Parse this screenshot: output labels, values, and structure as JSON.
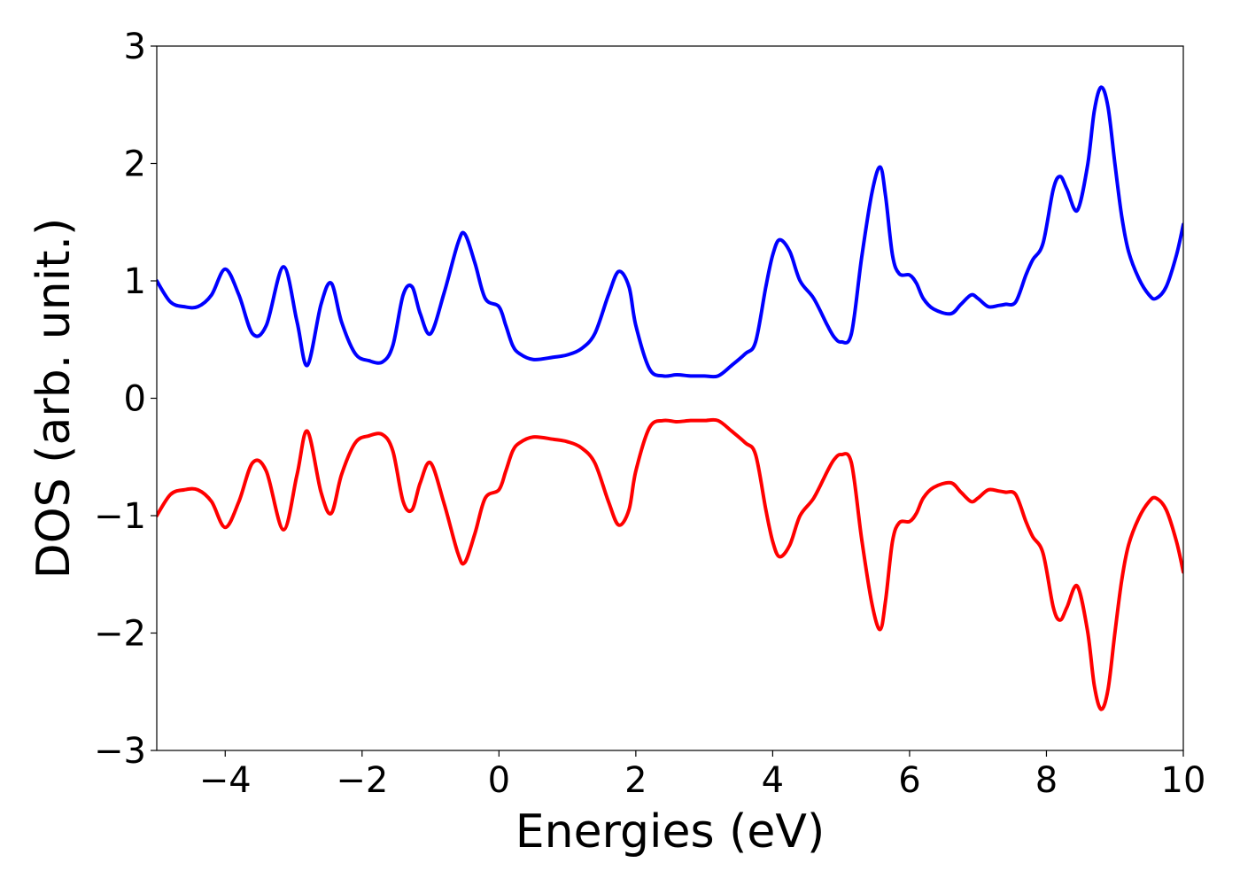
{
  "chart_data": {
    "type": "line",
    "title": "",
    "xlabel": "Energies (eV)",
    "ylabel": "DOS (arb. unit.)",
    "xlim": [
      -5,
      10
    ],
    "ylim": [
      -3,
      3
    ],
    "x_ticks": [
      -4,
      -2,
      0,
      2,
      4,
      6,
      8,
      10
    ],
    "x_tick_labels": [
      "−4",
      "−2",
      "0",
      "2",
      "4",
      "6",
      "8",
      "10"
    ],
    "y_ticks": [
      3,
      2,
      1,
      0,
      -1,
      -2,
      -3
    ],
    "y_tick_labels": [
      "3",
      "2",
      "1",
      "0",
      "−1",
      "−2",
      "−3"
    ],
    "grid": false,
    "legend": "none",
    "series": [
      {
        "color": "#0000ff",
        "x": [
          -5.0,
          -4.8,
          -4.6,
          -4.4,
          -4.2,
          -4.0,
          -3.8,
          -3.6,
          -3.4,
          -3.15,
          -2.95,
          -2.8,
          -2.6,
          -2.45,
          -2.3,
          -2.1,
          -1.9,
          -1.7,
          -1.55,
          -1.4,
          -1.27,
          -1.15,
          -1.0,
          -0.8,
          -0.6,
          -0.5,
          -0.35,
          -0.2,
          0.0,
          0.1,
          0.2,
          0.3,
          0.5,
          0.8,
          1.0,
          1.2,
          1.4,
          1.6,
          1.75,
          1.9,
          2.0,
          2.2,
          2.4,
          2.6,
          2.8,
          3.0,
          3.2,
          3.4,
          3.6,
          3.75,
          3.9,
          4.0,
          4.1,
          4.25,
          4.4,
          4.6,
          4.8,
          4.9,
          5.0,
          5.15,
          5.3,
          5.45,
          5.57,
          5.65,
          5.75,
          5.85,
          6.0,
          6.1,
          6.2,
          6.35,
          6.6,
          6.75,
          6.9,
          7.0,
          7.15,
          7.3,
          7.4,
          7.55,
          7.7,
          7.8,
          7.95,
          8.1,
          8.2,
          8.3,
          8.45,
          8.6,
          8.7,
          8.8,
          8.9,
          9.0,
          9.1,
          9.2,
          9.35,
          9.5,
          9.6,
          9.75,
          9.9,
          10.0
        ],
        "y": [
          1.0,
          0.82,
          0.78,
          0.78,
          0.88,
          1.1,
          0.88,
          0.55,
          0.62,
          1.12,
          0.65,
          0.28,
          0.8,
          0.98,
          0.65,
          0.38,
          0.32,
          0.31,
          0.45,
          0.88,
          0.95,
          0.72,
          0.55,
          0.9,
          1.32,
          1.4,
          1.15,
          0.85,
          0.78,
          0.62,
          0.45,
          0.38,
          0.33,
          0.35,
          0.37,
          0.42,
          0.55,
          0.88,
          1.08,
          0.95,
          0.62,
          0.25,
          0.19,
          0.2,
          0.19,
          0.19,
          0.19,
          0.28,
          0.38,
          0.48,
          0.95,
          1.22,
          1.35,
          1.25,
          1.0,
          0.85,
          0.62,
          0.52,
          0.48,
          0.55,
          1.2,
          1.75,
          1.97,
          1.72,
          1.22,
          1.06,
          1.05,
          0.98,
          0.85,
          0.76,
          0.72,
          0.8,
          0.88,
          0.85,
          0.78,
          0.79,
          0.8,
          0.82,
          1.05,
          1.18,
          1.32,
          1.78,
          1.89,
          1.78,
          1.6,
          1.98,
          2.45,
          2.65,
          2.48,
          2.0,
          1.55,
          1.25,
          1.02,
          0.88,
          0.85,
          0.95,
          1.22,
          1.48
        ]
      },
      {
        "color": "#ff0000",
        "x": [
          -5.0,
          -4.8,
          -4.6,
          -4.4,
          -4.2,
          -4.0,
          -3.8,
          -3.6,
          -3.4,
          -3.15,
          -2.95,
          -2.8,
          -2.6,
          -2.45,
          -2.3,
          -2.1,
          -1.9,
          -1.7,
          -1.55,
          -1.4,
          -1.27,
          -1.15,
          -1.0,
          -0.8,
          -0.6,
          -0.5,
          -0.35,
          -0.2,
          0.0,
          0.1,
          0.2,
          0.3,
          0.5,
          0.8,
          1.0,
          1.2,
          1.4,
          1.6,
          1.75,
          1.9,
          2.0,
          2.2,
          2.4,
          2.6,
          2.8,
          3.0,
          3.2,
          3.4,
          3.6,
          3.75,
          3.9,
          4.0,
          4.1,
          4.25,
          4.4,
          4.6,
          4.8,
          4.9,
          5.0,
          5.15,
          5.3,
          5.45,
          5.57,
          5.65,
          5.75,
          5.85,
          6.0,
          6.1,
          6.2,
          6.35,
          6.6,
          6.75,
          6.9,
          7.0,
          7.15,
          7.3,
          7.4,
          7.55,
          7.7,
          7.8,
          7.95,
          8.1,
          8.2,
          8.3,
          8.45,
          8.6,
          8.7,
          8.8,
          8.9,
          9.0,
          9.1,
          9.2,
          9.35,
          9.5,
          9.6,
          9.75,
          9.9,
          10.0
        ],
        "y": [
          -1.0,
          -0.82,
          -0.78,
          -0.78,
          -0.88,
          -1.1,
          -0.88,
          -0.55,
          -0.62,
          -1.12,
          -0.65,
          -0.28,
          -0.8,
          -0.98,
          -0.65,
          -0.38,
          -0.32,
          -0.31,
          -0.45,
          -0.88,
          -0.95,
          -0.72,
          -0.55,
          -0.9,
          -1.32,
          -1.4,
          -1.15,
          -0.85,
          -0.78,
          -0.62,
          -0.45,
          -0.38,
          -0.33,
          -0.35,
          -0.37,
          -0.42,
          -0.55,
          -0.88,
          -1.08,
          -0.95,
          -0.62,
          -0.25,
          -0.19,
          -0.2,
          -0.19,
          -0.19,
          -0.19,
          -0.28,
          -0.38,
          -0.48,
          -0.95,
          -1.22,
          -1.35,
          -1.25,
          -1.0,
          -0.85,
          -0.62,
          -0.52,
          -0.48,
          -0.55,
          -1.2,
          -1.75,
          -1.97,
          -1.72,
          -1.22,
          -1.06,
          -1.05,
          -0.98,
          -0.85,
          -0.76,
          -0.72,
          -0.8,
          -0.88,
          -0.85,
          -0.78,
          -0.79,
          -0.8,
          -0.82,
          -1.05,
          -1.18,
          -1.32,
          -1.78,
          -1.89,
          -1.78,
          -1.6,
          -1.98,
          -2.45,
          -2.65,
          -2.48,
          -2.0,
          -1.55,
          -1.25,
          -1.02,
          -0.88,
          -0.85,
          -0.95,
          -1.22,
          -1.48
        ]
      }
    ]
  }
}
